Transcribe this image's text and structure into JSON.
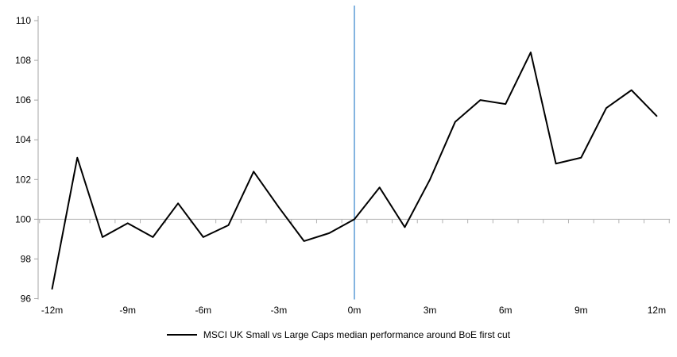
{
  "chart_data": {
    "type": "line",
    "title": "",
    "legend": "MSCI UK Small vs Large Caps median performance around BoE first cut",
    "legend_position": "bottom",
    "x_unit_suffix": "m",
    "x": [
      -12,
      -11,
      -10,
      -9,
      -8,
      -7,
      -6,
      -5,
      -4,
      -3,
      -2,
      -1,
      0,
      1,
      2,
      3,
      4,
      5,
      6,
      7,
      8,
      9,
      10,
      11,
      12
    ],
    "series": [
      {
        "name": "MSCI UK Small vs Large Caps median performance around BoE first cut",
        "values": [
          96.5,
          103.1,
          99.1,
          99.8,
          99.1,
          100.8,
          99.1,
          99.7,
          102.4,
          100.6,
          98.9,
          99.3,
          100.0,
          101.6,
          99.6,
          102.0,
          104.9,
          106.0,
          105.8,
          108.4,
          102.8,
          103.1,
          105.6,
          106.5,
          105.2
        ]
      }
    ],
    "x_tick_values": [
      -12,
      -9,
      -6,
      -3,
      0,
      3,
      6,
      9,
      12
    ],
    "x_tick_labels": [
      "-12m",
      "-9m",
      "-6m",
      "-3m",
      "0m",
      "3m",
      "6m",
      "9m",
      "12m"
    ],
    "y_ticks": [
      96,
      98,
      100,
      102,
      104,
      106,
      108,
      110
    ],
    "ylim": [
      96,
      110
    ],
    "xlim": [
      -12.5,
      12.5
    ],
    "baseline_value": 100,
    "event_line_x": 0,
    "grid": "baseline-only",
    "colors": {
      "series": "#000000",
      "axis": "#a6a6a6",
      "baseline": "#b3b3b3",
      "event_line": "#5b9bd5",
      "text": "#000000"
    }
  }
}
